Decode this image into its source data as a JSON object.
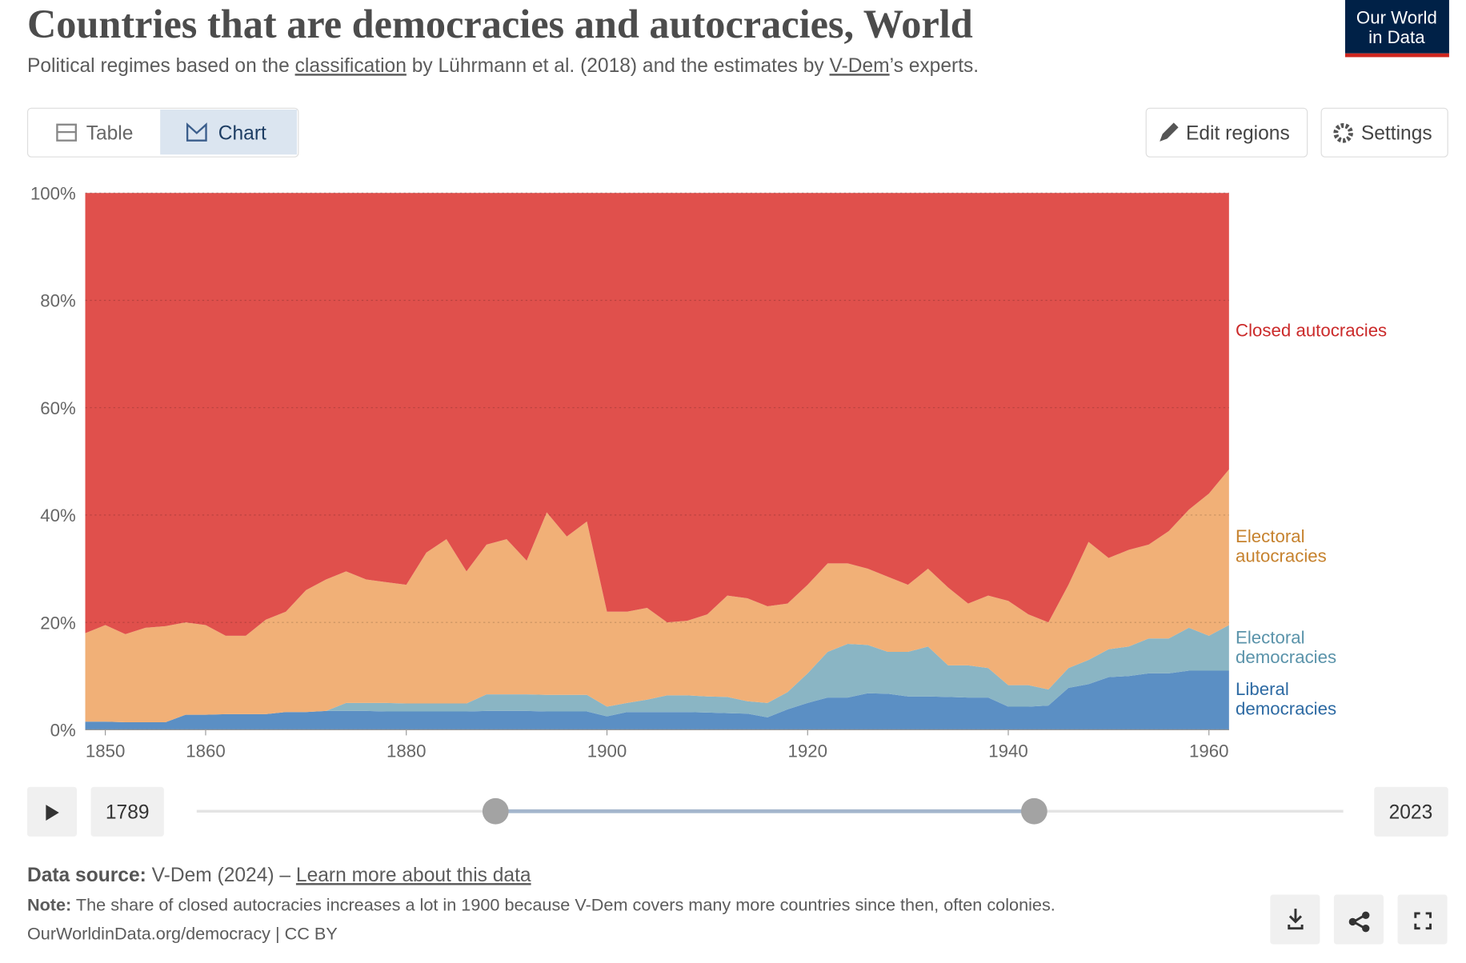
{
  "header": {
    "title": "Countries that are democracies and autocracies, World",
    "subtitle": [
      "Political regimes based on the ",
      "classification",
      " by Lührmann et al. (2018) and the estimates by ",
      "V-Dem",
      "’s experts."
    ]
  },
  "logo": [
    "Our World",
    "in Data"
  ],
  "tabs": [
    "Table",
    "Chart"
  ],
  "buttons": [
    "Edit regions",
    "Settings"
  ],
  "chart_data": {
    "type": "stacked_area",
    "x": [
      1848,
      1850,
      1852,
      1854,
      1856,
      1858,
      1860,
      1862,
      1864,
      1866,
      1868,
      1870,
      1872,
      1874,
      1876,
      1878,
      1880,
      1882,
      1884,
      1886,
      1888,
      1890,
      1892,
      1894,
      1896,
      1898,
      1900,
      1902,
      1904,
      1906,
      1908,
      1910,
      1912,
      1914,
      1916,
      1918,
      1920,
      1922,
      1924,
      1926,
      1928,
      1930,
      1932,
      1934,
      1936,
      1938,
      1940,
      1942,
      1944,
      1946,
      1948,
      1950,
      1952,
      1954,
      1956,
      1958,
      1960,
      1962
    ],
    "series": [
      {
        "name": "Liberal democracies",
        "color": "#5b8fc4",
        "label_color": "#2d6aa3",
        "values": [
          1.5,
          1.5,
          1.4,
          1.4,
          1.4,
          2.8,
          2.8,
          2.9,
          2.9,
          2.9,
          3.3,
          3.3,
          3.5,
          3.5,
          3.5,
          3.4,
          3.4,
          3.4,
          3.4,
          3.4,
          3.5,
          3.5,
          3.5,
          3.4,
          3.4,
          3.4,
          2.5,
          3.3,
          3.3,
          3.3,
          3.3,
          3.2,
          3.1,
          3,
          2.3,
          3.8,
          5,
          6,
          6,
          6.8,
          6.7,
          6.2,
          6.2,
          6.1,
          6,
          6,
          4.3,
          4.3,
          4.5,
          7.8,
          8.5,
          9.8,
          10,
          10.5,
          10.5,
          11,
          11,
          11
        ]
      },
      {
        "name": "Electoral democracies",
        "color": "#8ab5c4",
        "label_color": "#5a93aa",
        "values": [
          0,
          0,
          0,
          0,
          0,
          0,
          0,
          0,
          0,
          0,
          0,
          0,
          0,
          1.5,
          1.5,
          1.6,
          1.5,
          1.5,
          1.5,
          1.5,
          3.1,
          3.1,
          3.1,
          3.1,
          3.1,
          3.1,
          1.8,
          1.7,
          2.3,
          3.1,
          3.1,
          3,
          3,
          2.3,
          2.7,
          3.2,
          5.5,
          8.5,
          10,
          9,
          7.8,
          8.3,
          9.3,
          5.9,
          6,
          5.5,
          4,
          4,
          3,
          3.7,
          4.5,
          5.2,
          5.5,
          6.5,
          6.5,
          8,
          6.5,
          8.5
        ]
      },
      {
        "name": "Electoral autocracies",
        "color": "#f1b077",
        "label_color": "#c6822e",
        "values": [
          16.5,
          18,
          16.4,
          17.6,
          17.9,
          17.2,
          16.7,
          14.6,
          14.6,
          17.6,
          18.7,
          22.7,
          24.5,
          24.5,
          23,
          22.5,
          22.1,
          28.1,
          30.6,
          24.6,
          27.9,
          28.9,
          24.9,
          34,
          29.5,
          32.3,
          17.7,
          17,
          17.1,
          13.6,
          13.9,
          15.3,
          18.9,
          19.2,
          18,
          16.5,
          16.5,
          16.5,
          15,
          14.2,
          14,
          12.5,
          14.5,
          14.5,
          11.5,
          13.5,
          15.7,
          13.2,
          12.5,
          15.5,
          22,
          17,
          18,
          17.5,
          20,
          22,
          26.5,
          29
        ]
      },
      {
        "name": "Closed autocracies",
        "color": "#e0504c",
        "label_color": "#cb2a2a",
        "values": [
          82,
          80.5,
          82.2,
          81,
          80.7,
          80,
          80.5,
          82.5,
          82.5,
          79.5,
          78,
          74,
          72,
          70.5,
          72,
          72.5,
          73,
          67,
          64.5,
          70.5,
          65.5,
          64.5,
          68.5,
          59.5,
          64,
          61.2,
          78,
          78,
          77.3,
          80,
          79.7,
          78.5,
          75,
          75.5,
          77,
          76.5,
          73,
          69,
          69,
          70,
          71.5,
          73,
          70,
          73.5,
          76.5,
          75,
          76,
          78.5,
          80,
          73,
          65,
          68,
          66.5,
          65.5,
          63,
          59,
          56,
          51.5
        ]
      }
    ],
    "xlim": [
      1848,
      1962
    ],
    "xticks": [
      1850,
      1860,
      1880,
      1900,
      1920,
      1940,
      1960
    ],
    "ylim": [
      0,
      100
    ],
    "yticks": [
      {
        "value": 0,
        "label": "0%"
      },
      {
        "value": 20,
        "label": "20%"
      },
      {
        "value": 40,
        "label": "40%"
      },
      {
        "value": 60,
        "label": "60%"
      },
      {
        "value": 80,
        "label": "80%"
      },
      {
        "value": 100,
        "label": "100%"
      }
    ],
    "grid": true
  },
  "slider": {
    "start": "1789",
    "end": "2023"
  },
  "footer": {
    "source": [
      "Data source:",
      " V-Dem (2024) – ",
      "Learn more about this data"
    ],
    "note": [
      "Note:",
      " The share of closed autocracies increases a lot in 1900 because V-Dem covers many more countries since then, often colonies."
    ],
    "credit": "OurWorldinData.org/democracy | CC BY"
  }
}
